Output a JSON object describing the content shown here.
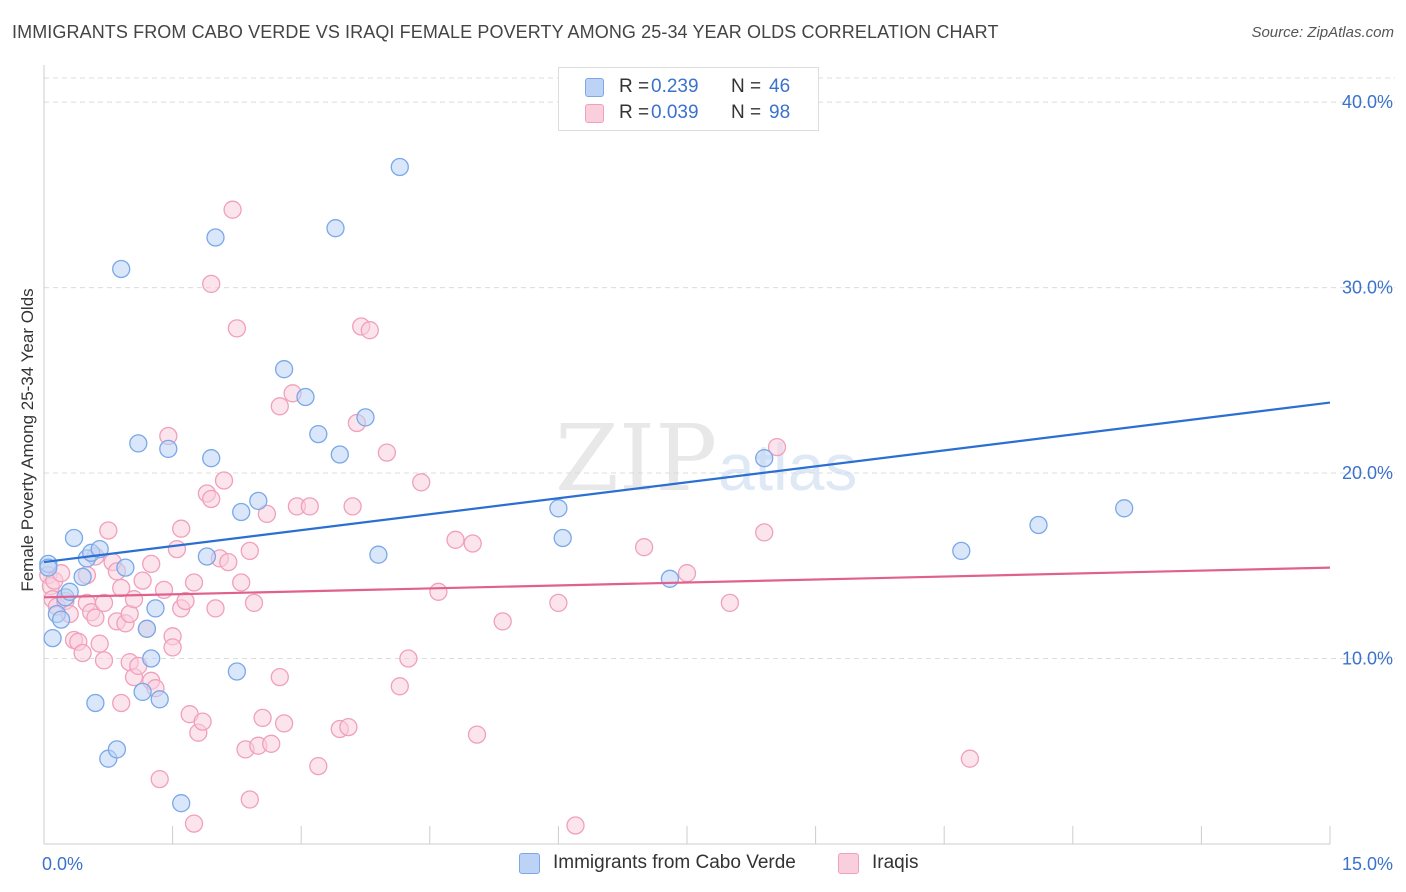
{
  "title": "IMMIGRANTS FROM CABO VERDE VS IRAQI FEMALE POVERTY AMONG 25-34 YEAR OLDS CORRELATION CHART",
  "source": "Source: ZipAtlas.com",
  "watermark": {
    "zip": "ZIP",
    "atlas": "atlas"
  },
  "legend": {
    "series1": {
      "r_label": "R =",
      "r_value": "0.239",
      "n_label": "N =",
      "n_value": "46"
    },
    "series2": {
      "r_label": "R =",
      "r_value": "0.039",
      "n_label": "N =",
      "n_value": "98"
    }
  },
  "chart_data": {
    "type": "scatter",
    "title": "IMMIGRANTS FROM CABO VERDE VS IRAQI FEMALE POVERTY AMONG 25-34 YEAR OLDS CORRELATION CHART",
    "xlabel": "",
    "ylabel": "Female Poverty Among 25-34 Year Olds",
    "xlim": [
      0,
      15
    ],
    "ylim": [
      0,
      42
    ],
    "x_tick_labels": [
      "0.0%",
      "15.0%"
    ],
    "y_ticks": [
      10,
      20,
      30,
      40
    ],
    "y_tick_labels": [
      "10.0%",
      "20.0%",
      "30.0%",
      "40.0%"
    ],
    "grid": true,
    "legend_position": "top-center",
    "series": [
      {
        "name": "Immigrants from Cabo Verde",
        "color": "#7aa8e8",
        "fill": "#bcd3f5",
        "line_color": "#2a6fd1",
        "trend": [
          [
            0,
            15.2
          ],
          [
            15,
            23.8
          ]
        ],
        "points": [
          [
            0.05,
            15.1
          ],
          [
            0.05,
            14.9
          ],
          [
            0.1,
            11.1
          ],
          [
            0.15,
            12.4
          ],
          [
            0.2,
            12.1
          ],
          [
            0.25,
            13.3
          ],
          [
            0.3,
            13.6
          ],
          [
            0.35,
            16.5
          ],
          [
            0.45,
            14.4
          ],
          [
            0.5,
            15.4
          ],
          [
            0.55,
            15.7
          ],
          [
            0.6,
            7.6
          ],
          [
            0.65,
            15.9
          ],
          [
            0.75,
            4.6
          ],
          [
            0.85,
            5.1
          ],
          [
            0.9,
            31.0
          ],
          [
            0.95,
            14.9
          ],
          [
            1.1,
            21.6
          ],
          [
            1.15,
            8.2
          ],
          [
            1.2,
            11.6
          ],
          [
            1.25,
            10.0
          ],
          [
            1.3,
            12.7
          ],
          [
            1.35,
            7.8
          ],
          [
            1.45,
            21.3
          ],
          [
            1.6,
            2.2
          ],
          [
            1.9,
            15.5
          ],
          [
            1.95,
            20.8
          ],
          [
            2.0,
            32.7
          ],
          [
            2.25,
            9.3
          ],
          [
            2.3,
            17.9
          ],
          [
            2.5,
            18.5
          ],
          [
            2.8,
            25.6
          ],
          [
            3.05,
            24.1
          ],
          [
            3.2,
            22.1
          ],
          [
            3.4,
            33.2
          ],
          [
            3.45,
            21.0
          ],
          [
            3.75,
            23.0
          ],
          [
            3.9,
            15.6
          ],
          [
            4.15,
            36.5
          ],
          [
            6.0,
            18.1
          ],
          [
            6.05,
            16.5
          ],
          [
            7.3,
            14.3
          ],
          [
            8.4,
            20.8
          ],
          [
            10.7,
            15.8
          ],
          [
            11.6,
            17.2
          ],
          [
            12.6,
            18.1
          ]
        ]
      },
      {
        "name": "Iraqis",
        "color": "#f0a0bb",
        "fill": "#f9cedd",
        "line_color": "#e0608e",
        "trend": [
          [
            0,
            13.3
          ],
          [
            15,
            14.9
          ]
        ],
        "points": [
          [
            0.05,
            14.5
          ],
          [
            0.08,
            13.9
          ],
          [
            0.1,
            13.2
          ],
          [
            0.12,
            14.2
          ],
          [
            0.15,
            12.8
          ],
          [
            0.2,
            14.6
          ],
          [
            0.25,
            13.1
          ],
          [
            0.3,
            12.4
          ],
          [
            0.35,
            11.0
          ],
          [
            0.4,
            10.9
          ],
          [
            0.45,
            10.3
          ],
          [
            0.5,
            14.5
          ],
          [
            0.5,
            13.0
          ],
          [
            0.55,
            12.5
          ],
          [
            0.6,
            12.2
          ],
          [
            0.65,
            10.8
          ],
          [
            0.7,
            9.9
          ],
          [
            0.7,
            13.0
          ],
          [
            0.75,
            16.9
          ],
          [
            0.8,
            15.2
          ],
          [
            0.85,
            12.0
          ],
          [
            0.85,
            14.7
          ],
          [
            0.9,
            13.8
          ],
          [
            0.95,
            11.9
          ],
          [
            1.0,
            12.4
          ],
          [
            1.0,
            9.8
          ],
          [
            1.05,
            13.2
          ],
          [
            1.05,
            9.0
          ],
          [
            1.1,
            9.6
          ],
          [
            1.15,
            14.2
          ],
          [
            1.2,
            11.6
          ],
          [
            1.25,
            8.8
          ],
          [
            1.25,
            15.1
          ],
          [
            1.3,
            8.4
          ],
          [
            1.35,
            3.5
          ],
          [
            1.4,
            13.7
          ],
          [
            1.45,
            22.0
          ],
          [
            1.5,
            11.2
          ],
          [
            1.5,
            10.6
          ],
          [
            1.55,
            15.9
          ],
          [
            1.6,
            12.7
          ],
          [
            1.6,
            17.0
          ],
          [
            1.65,
            13.1
          ],
          [
            1.7,
            7.0
          ],
          [
            1.75,
            1.1
          ],
          [
            1.75,
            14.1
          ],
          [
            1.8,
            6.0
          ],
          [
            1.85,
            6.6
          ],
          [
            1.9,
            18.9
          ],
          [
            1.95,
            30.2
          ],
          [
            1.95,
            18.6
          ],
          [
            2.0,
            12.7
          ],
          [
            2.05,
            15.4
          ],
          [
            2.1,
            19.6
          ],
          [
            2.15,
            15.2
          ],
          [
            2.2,
            34.2
          ],
          [
            2.25,
            27.8
          ],
          [
            2.3,
            14.1
          ],
          [
            2.35,
            5.1
          ],
          [
            2.4,
            15.8
          ],
          [
            2.4,
            2.4
          ],
          [
            2.45,
            13.0
          ],
          [
            2.5,
            5.3
          ],
          [
            2.55,
            6.8
          ],
          [
            2.6,
            17.8
          ],
          [
            2.65,
            5.4
          ],
          [
            2.75,
            23.6
          ],
          [
            2.75,
            9.0
          ],
          [
            2.8,
            6.5
          ],
          [
            2.9,
            24.3
          ],
          [
            2.95,
            18.2
          ],
          [
            3.1,
            18.2
          ],
          [
            3.2,
            4.2
          ],
          [
            3.45,
            6.2
          ],
          [
            3.55,
            6.3
          ],
          [
            3.6,
            18.2
          ],
          [
            3.65,
            22.7
          ],
          [
            3.7,
            27.9
          ],
          [
            3.8,
            27.7
          ],
          [
            4.0,
            21.1
          ],
          [
            4.15,
            8.5
          ],
          [
            4.25,
            10.0
          ],
          [
            4.4,
            19.5
          ],
          [
            4.6,
            13.6
          ],
          [
            4.8,
            16.4
          ],
          [
            5.0,
            16.2
          ],
          [
            5.05,
            5.9
          ],
          [
            5.35,
            12.0
          ],
          [
            6.0,
            13.0
          ],
          [
            6.2,
            1.0
          ],
          [
            7.0,
            16.0
          ],
          [
            7.5,
            14.6
          ],
          [
            8.0,
            13.0
          ],
          [
            8.4,
            16.8
          ],
          [
            8.55,
            21.4
          ],
          [
            10.8,
            4.6
          ],
          [
            0.6,
            15.5
          ],
          [
            0.9,
            7.6
          ]
        ]
      }
    ]
  }
}
